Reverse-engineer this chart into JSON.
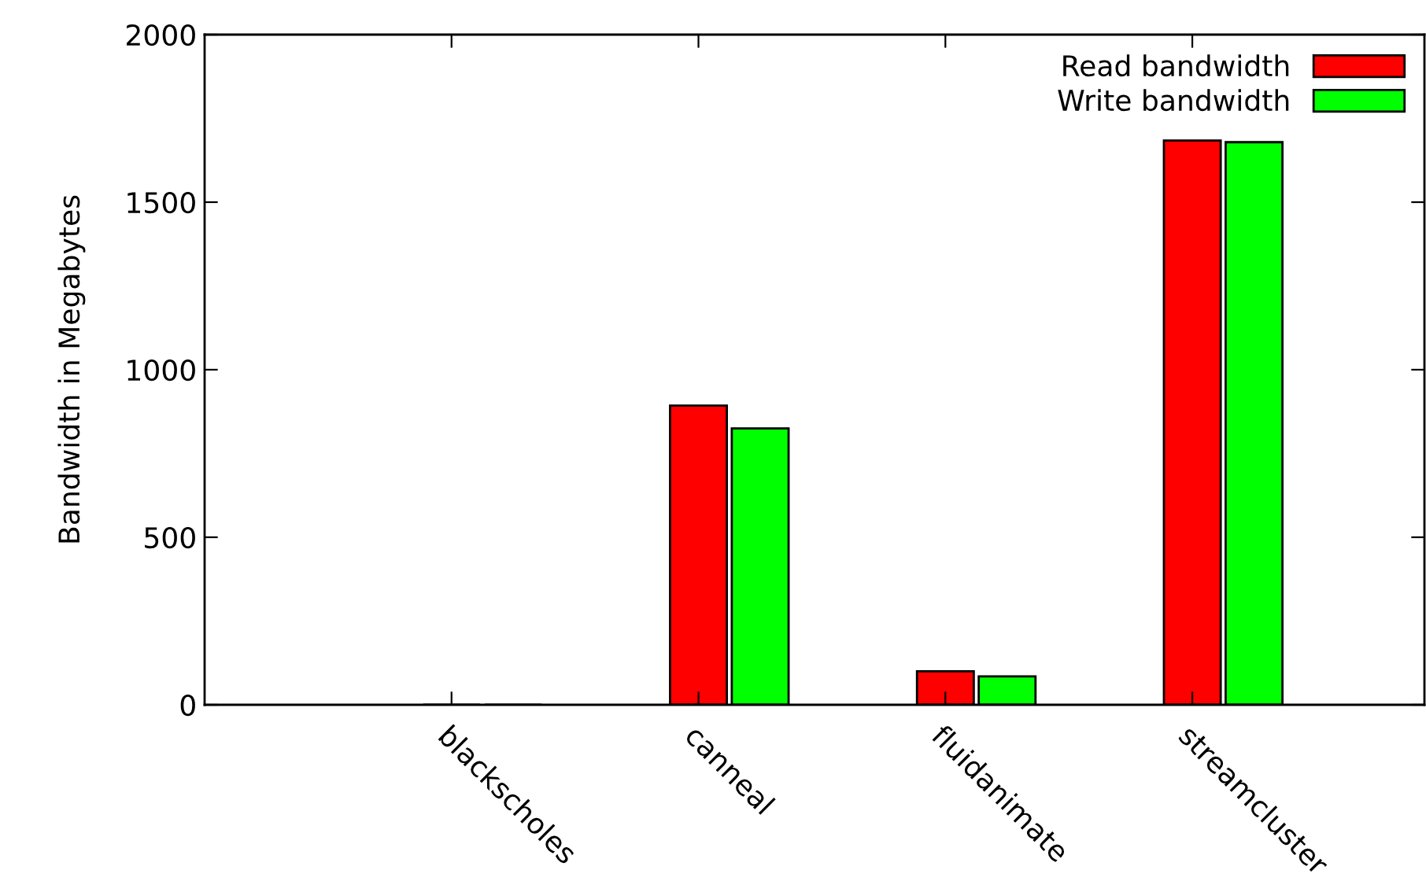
{
  "chart_data": {
    "type": "bar",
    "ylabel": "Bandwidth in Megabytes",
    "categories": [
      "blackscholes",
      "canneal",
      "fluidanimate",
      "streamcluster"
    ],
    "series": [
      {
        "name": "Read bandwidth",
        "color": "#ff0000",
        "values": [
          0,
          893,
          100,
          1684
        ]
      },
      {
        "name": "Write bandwidth",
        "color": "#00ff00",
        "values": [
          0,
          825,
          85,
          1679
        ]
      }
    ],
    "ylim": [
      0,
      2000
    ],
    "yticks": [
      0,
      500,
      1000,
      1500,
      2000
    ],
    "grid": false,
    "legend": "top right"
  }
}
